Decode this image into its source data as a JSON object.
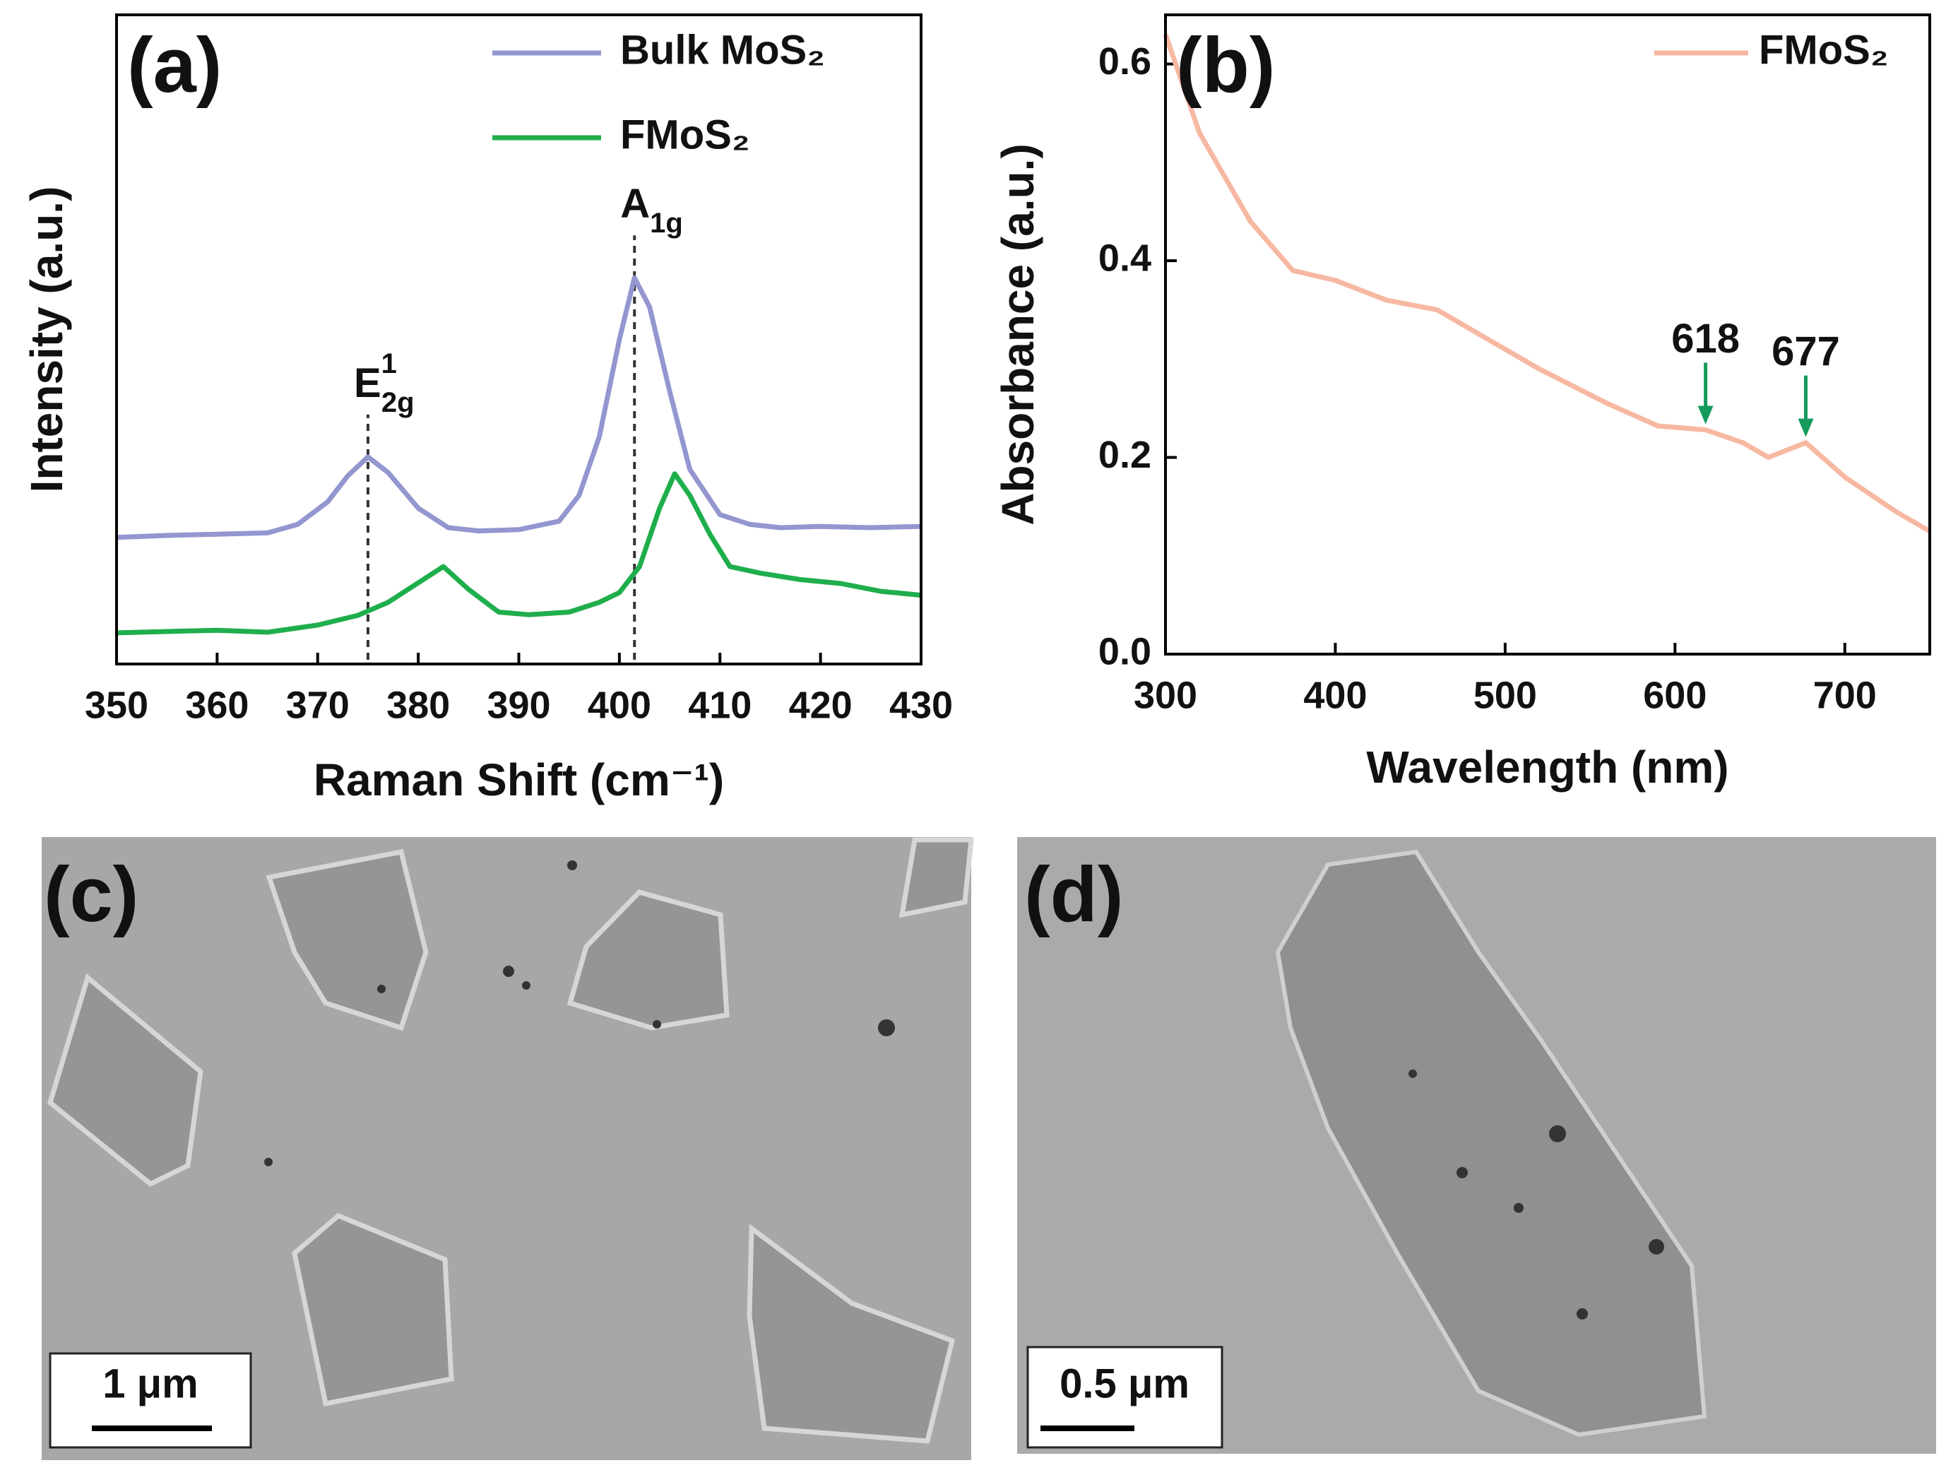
{
  "chart_data": [
    {
      "type": "line",
      "panel_label": "(a)",
      "x_label": "Raman Shift (cm⁻¹)",
      "y_label": "Intensity (a.u.)",
      "series": [
        {
          "name": "Bulk MoS₂",
          "color": "#9396cf",
          "x": [
            350,
            355,
            360,
            365,
            368,
            371,
            373,
            375,
            377,
            380,
            383,
            386,
            390,
            394,
            396,
            398,
            400,
            401.5,
            403,
            405,
            407,
            410,
            413,
            416,
            420,
            425,
            430
          ],
          "values": [
            19.5,
            19.8,
            20,
            20.2,
            21.5,
            25,
            29,
            31.9,
            29.5,
            24,
            21,
            20.5,
            20.7,
            22,
            26,
            35,
            50,
            59.5,
            55,
            42,
            30,
            23,
            21.5,
            21,
            21.2,
            21,
            21.2
          ]
        },
        {
          "name": "FMoS₂",
          "color": "#1fae4c",
          "x": [
            350,
            355,
            360,
            365,
            370,
            374,
            377,
            380,
            382.5,
            385,
            388,
            391,
            395,
            398,
            400,
            402,
            404,
            405.5,
            407,
            409,
            411,
            414,
            418,
            422,
            426,
            430
          ],
          "values": [
            4.8,
            5,
            5.2,
            4.9,
            6,
            7.5,
            9.5,
            12.5,
            15,
            11.5,
            8,
            7.6,
            8,
            9.5,
            11,
            15,
            24,
            29.3,
            26,
            20,
            15,
            14,
            13,
            12.4,
            11.2,
            10.6
          ]
        }
      ],
      "annotations": [
        {
          "text": "E",
          "sup": "1",
          "sub": "2g",
          "x": 375
        },
        {
          "text": "A",
          "sub": "1g",
          "x": 401.5
        }
      ],
      "xlim": [
        350,
        430
      ],
      "xticks": [
        350,
        360,
        370,
        380,
        390,
        400,
        410,
        420,
        430
      ],
      "ylim": [
        0,
        100
      ],
      "legend": "upper right"
    },
    {
      "type": "line",
      "panel_label": "(b)",
      "x_label": "Wavelength (nm)",
      "y_label": "Absorbance (a.u.)",
      "series": [
        {
          "name": "FMoS₂",
          "color": "#f7b8a2",
          "x": [
            300,
            320,
            350,
            375,
            400,
            430,
            460,
            490,
            520,
            560,
            590,
            618,
            640,
            655,
            677,
            700,
            730,
            750
          ],
          "values": [
            0.63,
            0.53,
            0.44,
            0.39,
            0.38,
            0.36,
            0.35,
            0.32,
            0.29,
            0.255,
            0.232,
            0.228,
            0.215,
            0.2,
            0.215,
            0.18,
            0.145,
            0.125
          ]
        }
      ],
      "peaks": [
        618,
        677
      ],
      "xlim": [
        300,
        750
      ],
      "xticks": [
        300,
        400,
        500,
        600,
        700
      ],
      "ylim": [
        0,
        0.65
      ],
      "yticks": [
        {
          "value": 0,
          "label": "0.0"
        },
        0.2,
        0.4,
        0.6
      ],
      "legend": "upper right"
    }
  ],
  "images": [
    {
      "label": "(c)",
      "scale_bar": "1 μm"
    },
    {
      "label": "(d)",
      "scale_bar": "0.5 μm"
    }
  ]
}
